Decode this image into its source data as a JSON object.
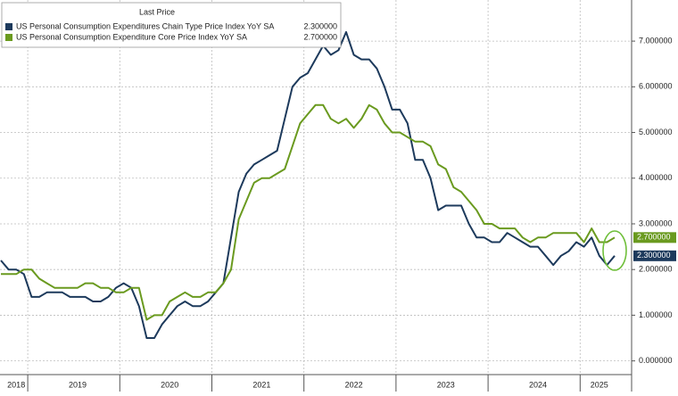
{
  "chart_data": {
    "type": "line",
    "legend_header": "Last Price",
    "categories": [
      null,
      null,
      "2018",
      null,
      null,
      null,
      null,
      null,
      null,
      null,
      "2019",
      null,
      null,
      null,
      null,
      null,
      null,
      null,
      null,
      null,
      null,
      null,
      "2020",
      null,
      null,
      null,
      null,
      null,
      null,
      null,
      null,
      null,
      null,
      null,
      "2021",
      null,
      null,
      null,
      null,
      null,
      null,
      null,
      null,
      null,
      null,
      null,
      "2022",
      null,
      null,
      null,
      null,
      null,
      null,
      null,
      null,
      null,
      null,
      null,
      "2023",
      null,
      null,
      null,
      null,
      null,
      null,
      null,
      null,
      null,
      null,
      null,
      "2024",
      null,
      null,
      null,
      null,
      null,
      null,
      null,
      "2025",
      null,
      null
    ],
    "series": [
      {
        "name": "US Personal Consumption Expenditures Chain Type Price Index YoY SA",
        "color": "#1d3a5c",
        "last_label": "2.300000",
        "values": [
          2.2,
          2.0,
          2.0,
          1.9,
          1.4,
          1.4,
          1.5,
          1.5,
          1.5,
          1.4,
          1.4,
          1.4,
          1.3,
          1.3,
          1.4,
          1.6,
          1.7,
          1.6,
          1.2,
          0.5,
          0.5,
          0.8,
          1.0,
          1.2,
          1.3,
          1.2,
          1.2,
          1.3,
          1.5,
          1.7,
          2.7,
          3.7,
          4.1,
          4.3,
          4.4,
          4.5,
          4.6,
          5.3,
          6.0,
          6.2,
          6.3,
          6.6,
          6.9,
          6.7,
          6.8,
          7.2,
          6.7,
          6.6,
          6.6,
          6.4,
          6.0,
          5.5,
          5.5,
          5.2,
          4.4,
          4.4,
          4.0,
          3.3,
          3.4,
          3.4,
          3.4,
          3.0,
          2.7,
          2.7,
          2.6,
          2.6,
          2.8,
          2.7,
          2.6,
          2.5,
          2.5,
          2.3,
          2.1,
          2.3,
          2.4,
          2.6,
          2.5,
          2.7,
          2.3,
          2.1,
          2.3
        ]
      },
      {
        "name": "US Personal Consumption Expenditure Core Price Index YoY SA",
        "color": "#6a9a1f",
        "last_label": "2.700000",
        "values": [
          1.9,
          1.9,
          1.9,
          2.0,
          2.0,
          1.8,
          1.7,
          1.6,
          1.6,
          1.6,
          1.6,
          1.7,
          1.7,
          1.6,
          1.6,
          1.5,
          1.5,
          1.6,
          1.6,
          0.9,
          1.0,
          1.0,
          1.3,
          1.4,
          1.5,
          1.4,
          1.4,
          1.5,
          1.5,
          1.7,
          2.0,
          3.1,
          3.5,
          3.9,
          4.0,
          4.0,
          4.1,
          4.2,
          4.7,
          5.2,
          5.4,
          5.6,
          5.6,
          5.3,
          5.2,
          5.3,
          5.1,
          5.3,
          5.6,
          5.5,
          5.2,
          5.0,
          5.0,
          4.9,
          4.8,
          4.8,
          4.7,
          4.3,
          4.2,
          3.8,
          3.7,
          3.5,
          3.3,
          3.0,
          3.0,
          2.9,
          2.9,
          2.9,
          2.7,
          2.6,
          2.7,
          2.7,
          2.8,
          2.8,
          2.8,
          2.8,
          2.6,
          2.9,
          2.6,
          2.6,
          2.7
        ]
      }
    ],
    "ylim": [
      -0.3,
      7.9
    ],
    "yticks": [
      {
        "value": 0,
        "label": "0.000000"
      },
      {
        "value": 1,
        "label": "1.000000"
      },
      {
        "value": 2,
        "label": "2.000000"
      },
      {
        "value": 3,
        "label": "3.000000"
      },
      {
        "value": 4,
        "label": "4.000000"
      },
      {
        "value": 5,
        "label": "5.000000"
      },
      {
        "value": 6,
        "label": "6.000000"
      },
      {
        "value": 7,
        "label": "7.000000"
      }
    ],
    "grid": true
  }
}
